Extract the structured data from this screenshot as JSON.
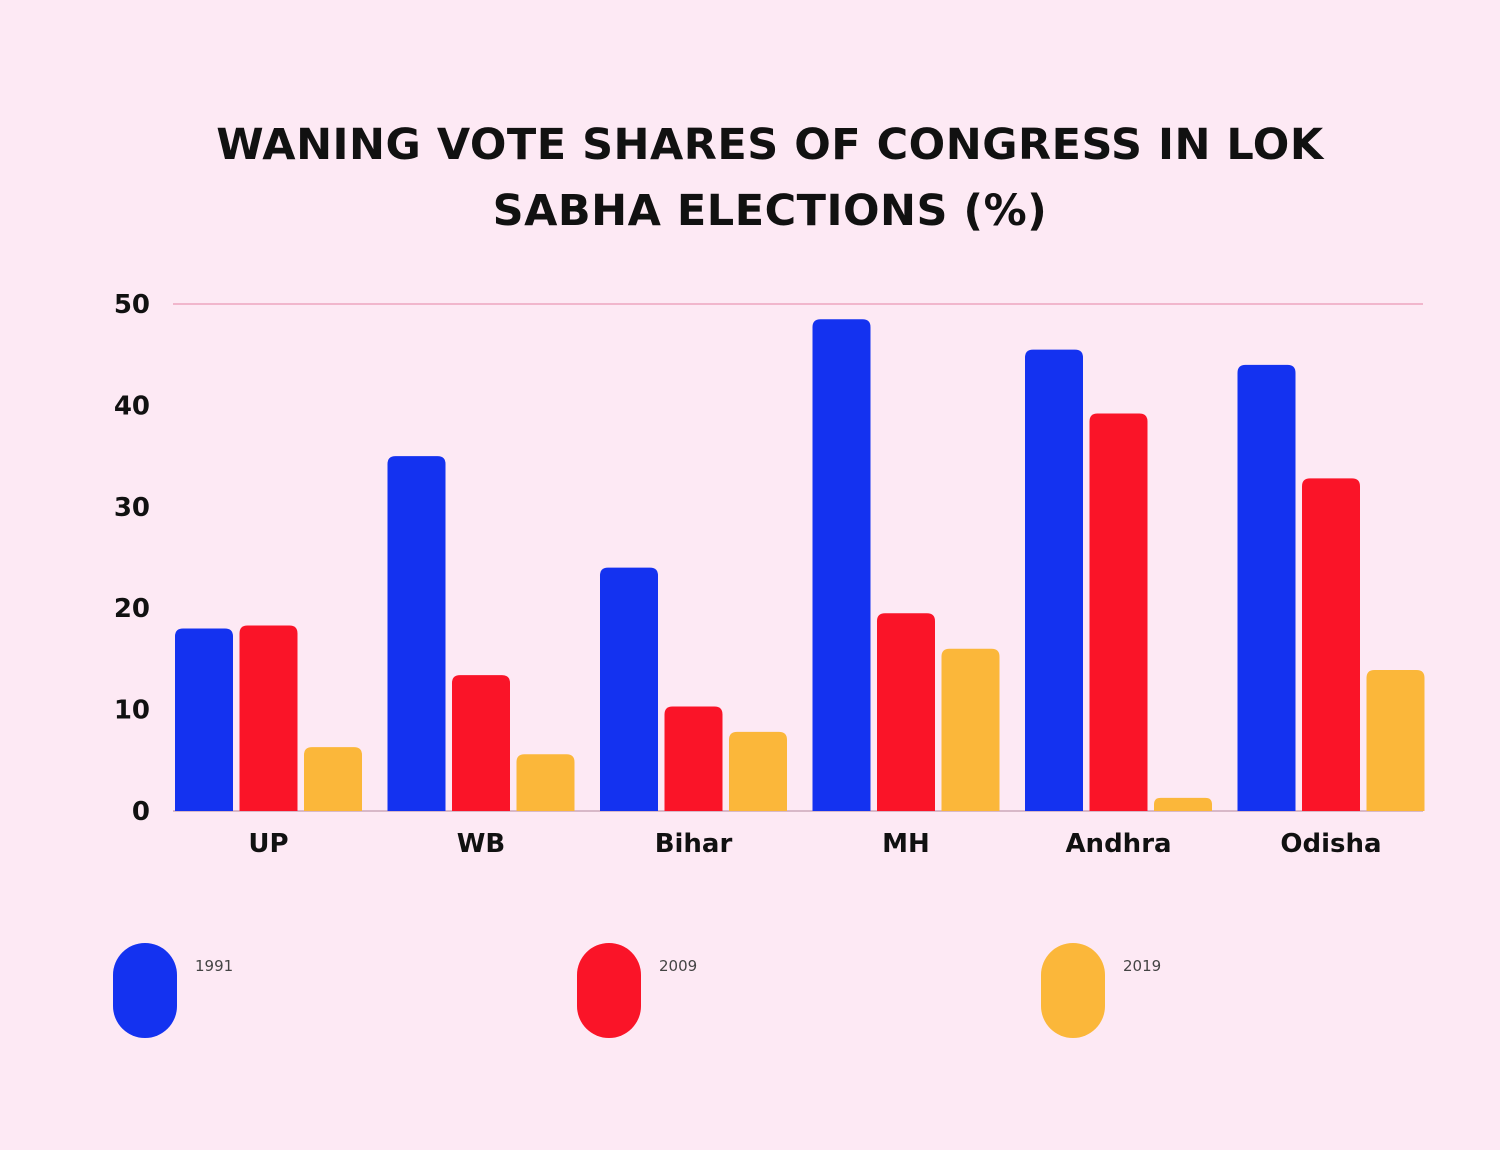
{
  "chart_data": {
    "type": "bar",
    "title_lines": [
      "WANING VOTE SHARES OF CONGRESS IN LOK",
      "SABHA ELECTIONS (%)"
    ],
    "categories": [
      "UP",
      "WB",
      "Bihar",
      "MH",
      "Andhra",
      "Odisha"
    ],
    "series": [
      {
        "name": "1991",
        "color": "#1432f0",
        "values": [
          18,
          35,
          24,
          48.5,
          45.5,
          44
        ]
      },
      {
        "name": "2009",
        "color": "#fa1428",
        "values": [
          18.3,
          13.4,
          10.3,
          19.5,
          39.2,
          32.8
        ]
      },
      {
        "name": "2019",
        "color": "#fbb73a",
        "values": [
          6.3,
          5.6,
          7.8,
          16,
          1.3,
          13.9
        ]
      }
    ],
    "yticks": [
      "0",
      "10",
      "20",
      "30",
      "40",
      "50"
    ],
    "ylim": [
      0,
      50
    ],
    "grid": false,
    "legend_position": "bottom"
  }
}
